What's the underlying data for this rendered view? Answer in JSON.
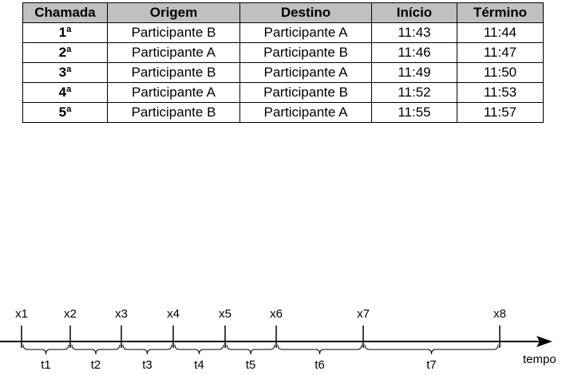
{
  "table": {
    "header": [
      "Chamada",
      "Origem",
      "Destino",
      "Início",
      "Término"
    ],
    "rows": [
      [
        "1ª",
        "Participante B",
        "Participante A",
        "11:43",
        "11:44"
      ],
      [
        "2ª",
        "Participante A",
        "Participante B",
        "11:46",
        "11:47"
      ],
      [
        "3ª",
        "Participante B",
        "Participante A",
        "11:49",
        "11:50"
      ],
      [
        "4ª",
        "Participante A",
        "Participante B",
        "11:52",
        "11:53"
      ],
      [
        "5ª",
        "Participante B",
        "Participante A",
        "11:55",
        "11:57"
      ]
    ]
  },
  "timeline": {
    "points": [
      "x1",
      "x2",
      "x3",
      "x4",
      "x5",
      "x6",
      "x7",
      "x8"
    ],
    "intervals": [
      "t1",
      "t2",
      "t3",
      "t4",
      "t5",
      "t6",
      "t7"
    ],
    "axis_label": "tempo"
  }
}
